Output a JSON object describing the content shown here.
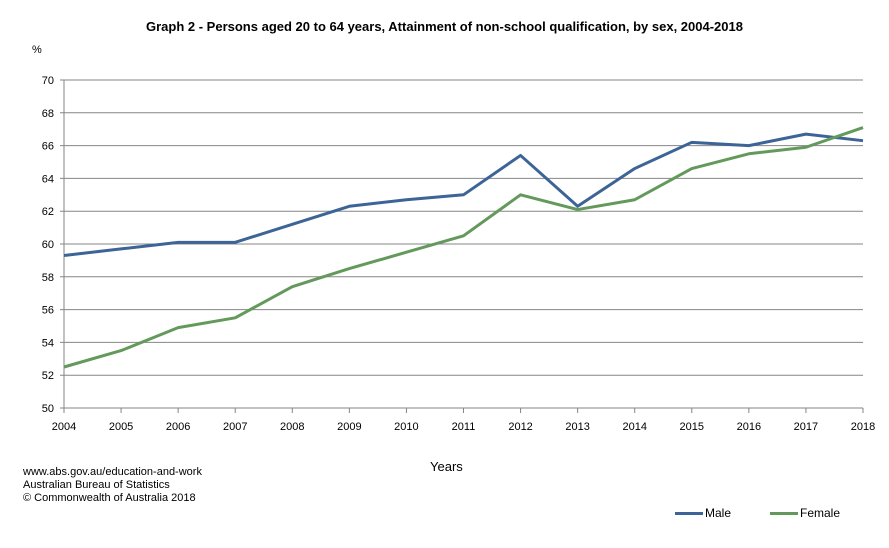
{
  "chart_data": {
    "type": "line",
    "title": "Graph 2 - Persons  aged 20 to 64 years, Attainment of non-school  qualification, by sex, 2004-2018",
    "xlabel": "Years",
    "ylabel": "%",
    "ylim": [
      50,
      70
    ],
    "yticks": [
      50,
      52,
      54,
      56,
      58,
      60,
      62,
      64,
      66,
      68,
      70
    ],
    "grid": true,
    "legend": "bottom-right",
    "x": [
      2004,
      2005,
      2006,
      2007,
      2008,
      2009,
      2010,
      2011,
      2012,
      2013,
      2014,
      2015,
      2016,
      2017,
      2018
    ],
    "series": [
      {
        "name": "Male",
        "color": "#3c6496",
        "values": [
          59.3,
          59.7,
          60.1,
          60.1,
          61.2,
          62.3,
          62.7,
          63.0,
          65.4,
          62.3,
          64.6,
          66.2,
          66.0,
          66.7,
          66.3
        ]
      },
      {
        "name": "Female",
        "color": "#63995b",
        "values": [
          52.5,
          53.5,
          54.9,
          55.5,
          57.4,
          58.5,
          59.5,
          60.5,
          63.0,
          62.1,
          62.7,
          64.6,
          65.5,
          65.9,
          67.1
        ]
      }
    ]
  },
  "footer": {
    "line1": "www.abs.gov.au/education-and-work",
    "line2": "Australian Bureau of Statistics",
    "line3": "© Commonwealth of Australia 2018"
  }
}
